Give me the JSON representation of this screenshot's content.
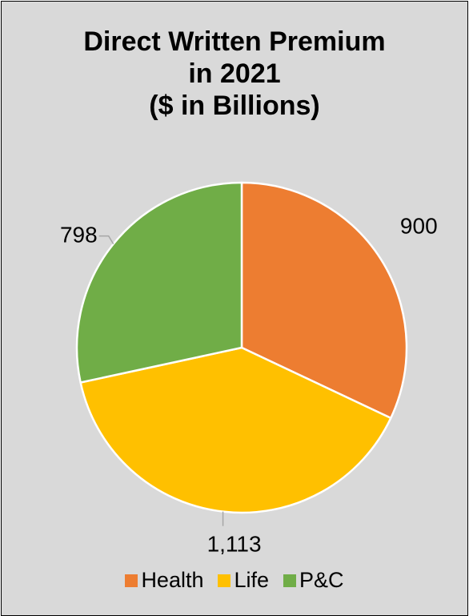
{
  "chart_data": {
    "type": "pie",
    "title": [
      "Direct Written Premium",
      "in 2021",
      "($ in Billions)"
    ],
    "categories": [
      "Health",
      "Life",
      "P&C"
    ],
    "values": [
      900,
      1113,
      798
    ],
    "value_labels": [
      "900",
      "1,113",
      "798"
    ],
    "colors": [
      "#ed7d31",
      "#ffc000",
      "#70ad47"
    ],
    "start_angle_deg": 0,
    "direction": "clockwise",
    "legend_position": "bottom",
    "background": "#d9d9d9"
  }
}
